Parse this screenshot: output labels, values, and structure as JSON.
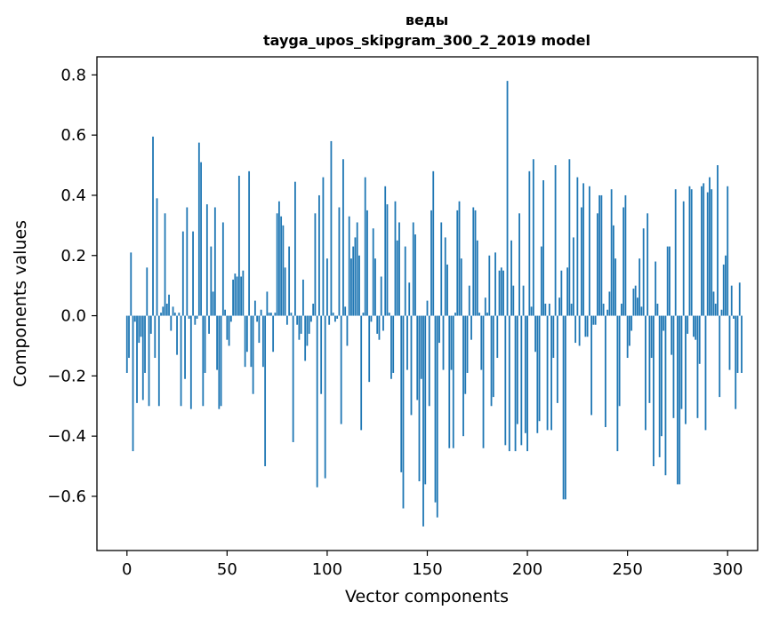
{
  "chart_data": {
    "type": "bar",
    "title_line1": "веды",
    "title_line2": "tayga_upos_skipgram_300_2_2019 model",
    "xlabel": "Vector components",
    "ylabel": "Components values",
    "xlim": [
      -15,
      315
    ],
    "ylim": [
      -0.78,
      0.86
    ],
    "x_ticks": [
      0,
      50,
      100,
      150,
      200,
      250,
      300
    ],
    "y_ticks": [
      -0.6,
      -0.4,
      -0.2,
      0.0,
      0.2,
      0.4,
      0.6,
      0.8
    ],
    "y_tick_labels": [
      "−0.6",
      "−0.4",
      "−0.2",
      "0.0",
      "0.2",
      "0.4",
      "0.6",
      "0.8"
    ],
    "x_tick_labels": [
      "0",
      "50",
      "100",
      "150",
      "200",
      "250",
      "300"
    ],
    "bar_color": "#1f77b4",
    "values": [
      -0.19,
      -0.14,
      0.21,
      -0.45,
      -0.02,
      -0.29,
      -0.09,
      -0.07,
      -0.28,
      -0.19,
      0.16,
      -0.3,
      -0.06,
      0.595,
      -0.14,
      0.39,
      -0.3,
      0.01,
      0.03,
      0.34,
      0.04,
      0.07,
      -0.05,
      0.03,
      0.01,
      -0.13,
      0.01,
      -0.3,
      0.28,
      -0.21,
      0.36,
      -0.01,
      -0.31,
      0.28,
      -0.03,
      -0.01,
      0.575,
      0.51,
      -0.3,
      -0.19,
      0.37,
      -0.06,
      0.23,
      0.08,
      0.36,
      -0.18,
      -0.31,
      -0.3,
      0.31,
      0.02,
      -0.08,
      -0.1,
      -0.02,
      0.12,
      0.14,
      0.13,
      0.465,
      0.13,
      0.15,
      -0.17,
      -0.12,
      0.48,
      -0.17,
      -0.26,
      0.05,
      -0.02,
      -0.09,
      0.02,
      -0.17,
      -0.5,
      0.08,
      0.01,
      0.01,
      -0.12,
      0.01,
      0.34,
      0.38,
      0.33,
      0.3,
      0.16,
      -0.03,
      0.23,
      0.01,
      -0.42,
      0.445,
      -0.03,
      -0.08,
      -0.06,
      0.12,
      -0.15,
      -0.1,
      -0.06,
      -0.02,
      0.04,
      0.34,
      -0.57,
      0.4,
      -0.26,
      0.46,
      -0.54,
      0.19,
      -0.03,
      0.58,
      0.01,
      -0.02,
      -0.01,
      0.36,
      -0.36,
      0.52,
      0.03,
      -0.1,
      0.33,
      0.19,
      0.23,
      0.26,
      0.31,
      0.2,
      -0.38,
      0.01,
      0.46,
      0.35,
      -0.22,
      -0.02,
      0.29,
      0.19,
      -0.06,
      -0.08,
      0.13,
      -0.05,
      0.43,
      0.37,
      0.01,
      -0.21,
      -0.19,
      0.38,
      0.25,
      0.31,
      -0.52,
      -0.64,
      0.23,
      -0.18,
      0.11,
      -0.33,
      0.31,
      0.27,
      -0.28,
      -0.55,
      -0.21,
      -0.7,
      -0.56,
      0.05,
      -0.3,
      0.35,
      0.48,
      -0.62,
      -0.67,
      -0.09,
      0.31,
      -0.18,
      0.26,
      0.17,
      -0.44,
      -0.18,
      -0.44,
      0.01,
      0.35,
      0.38,
      0.19,
      -0.4,
      -0.26,
      -0.19,
      0.1,
      -0.08,
      0.36,
      0.35,
      0.25,
      0.01,
      -0.18,
      -0.44,
      0.06,
      0.01,
      0.2,
      -0.3,
      -0.27,
      0.21,
      -0.14,
      0.15,
      0.16,
      0.15,
      -0.43,
      0.78,
      -0.45,
      0.25,
      0.1,
      -0.45,
      -0.36,
      0.34,
      -0.43,
      0.1,
      -0.39,
      -0.45,
      0.48,
      0.03,
      0.52,
      -0.12,
      -0.39,
      -0.35,
      0.23,
      0.45,
      0.04,
      -0.38,
      0.04,
      -0.38,
      -0.14,
      0.5,
      -0.29,
      0.06,
      0.15,
      -0.61,
      -0.61,
      0.16,
      0.52,
      0.04,
      0.26,
      -0.09,
      0.46,
      -0.1,
      0.36,
      0.44,
      -0.07,
      -0.07,
      0.43,
      -0.33,
      -0.03,
      -0.03,
      0.34,
      0.4,
      0.4,
      0.04,
      -0.37,
      0.02,
      0.08,
      0.42,
      0.3,
      0.19,
      -0.45,
      -0.3,
      0.04,
      0.36,
      0.4,
      -0.14,
      -0.1,
      -0.05,
      0.09,
      0.1,
      0.06,
      0.19,
      0.03,
      0.29,
      -0.38,
      0.34,
      -0.29,
      -0.14,
      -0.5,
      0.18,
      0.04,
      -0.47,
      -0.4,
      -0.05,
      -0.53,
      0.23,
      0.23,
      -0.13,
      -0.34,
      0.42,
      -0.56,
      -0.56,
      -0.31,
      0.38,
      -0.36,
      -0.06,
      0.43,
      0.42,
      -0.07,
      -0.08,
      -0.34,
      -0.16,
      0.43,
      0.44,
      -0.38,
      0.41,
      0.46,
      0.42,
      0.08,
      0.04,
      0.5,
      -0.27,
      0.02,
      0.17,
      0.2,
      0.43,
      -0.18,
      0.1,
      -0.01,
      -0.31,
      -0.19,
      0.11,
      -0.19
    ]
  }
}
